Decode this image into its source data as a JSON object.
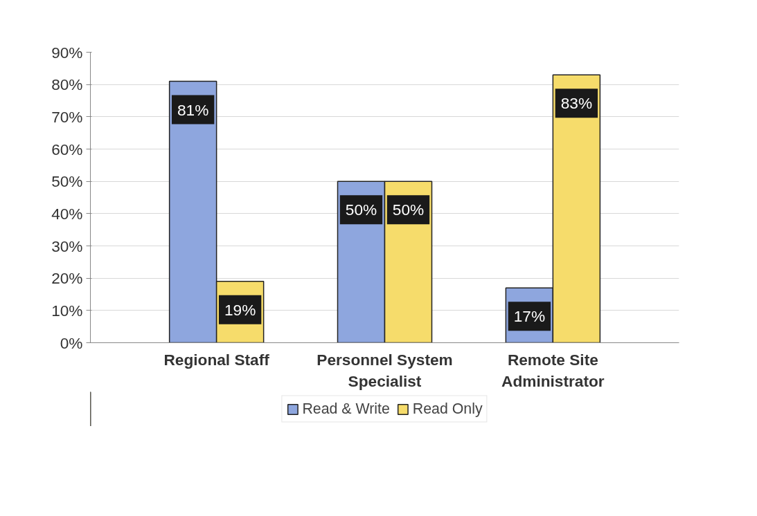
{
  "chart_data": {
    "type": "bar",
    "categories": [
      "Regional Staff",
      "Personnel System Specialist",
      "Remote Site Administrator"
    ],
    "series": [
      {
        "name": "Read & Write",
        "color": "#8ea6de",
        "values": [
          81,
          50,
          17
        ]
      },
      {
        "name": "Read Only",
        "color": "#f6dc6b",
        "values": [
          19,
          50,
          83
        ]
      }
    ],
    "ylim": [
      0,
      90
    ],
    "yticks": [
      {
        "value": 0,
        "label": "0%"
      },
      {
        "value": 10,
        "label": "10%"
      },
      {
        "value": 20,
        "label": "20%"
      },
      {
        "value": 30,
        "label": "30%"
      },
      {
        "value": 40,
        "label": "40%"
      },
      {
        "value": 50,
        "label": "50%"
      },
      {
        "value": 60,
        "label": "60%"
      },
      {
        "value": 70,
        "label": "70%"
      },
      {
        "value": 80,
        "label": "80%"
      },
      {
        "value": 90,
        "label": "90%"
      }
    ],
    "value_labels": [
      [
        "81%",
        "50%",
        "17%"
      ],
      [
        "19%",
        "50%",
        "83%"
      ]
    ],
    "grid": "y",
    "legend": "bottom"
  }
}
